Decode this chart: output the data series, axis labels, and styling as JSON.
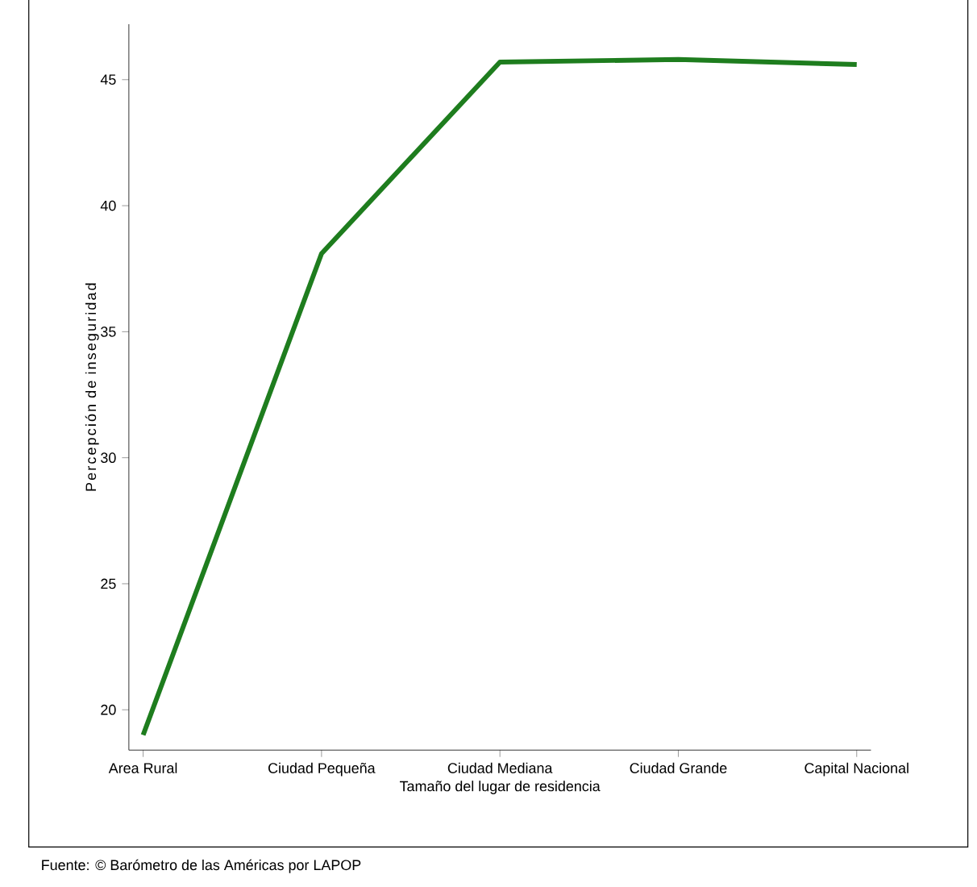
{
  "chart_data": {
    "type": "line",
    "xlabel": "Tamaño del lugar de residencia",
    "ylabel": "Percepción de inseguridad",
    "categories": [
      "Area Rural",
      "Ciudad Pequeña",
      "Ciudad Mediana",
      "Ciudad Grande",
      "Capital Nacional"
    ],
    "values": [
      19.0,
      38.1,
      45.7,
      45.8,
      45.6
    ],
    "color": "#1e7d1e",
    "ylim": [
      18.4,
      47.2
    ],
    "yticks": [
      20,
      25,
      30,
      35,
      40,
      45
    ],
    "grid": false,
    "marker": "none",
    "line_style": "solid",
    "annotations": [
      "Fuente: © Barómetro de las Américas por LAPOP"
    ]
  }
}
